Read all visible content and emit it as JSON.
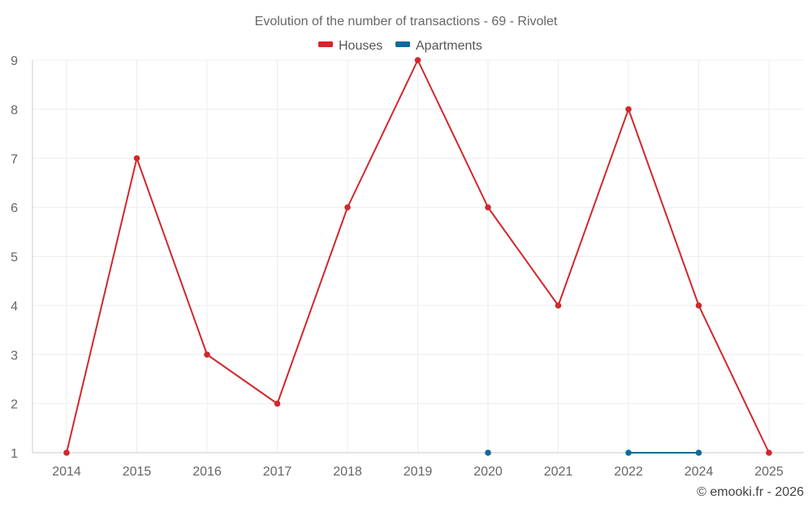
{
  "chart_data": {
    "type": "line",
    "title": "Evolution of the number of transactions - 69 - Rivolet",
    "categories": [
      "2014",
      "2015",
      "2016",
      "2017",
      "2018",
      "2019",
      "2020",
      "2021",
      "2022",
      "2024",
      "2025"
    ],
    "ylim": [
      1,
      9
    ],
    "yticks": [
      1,
      2,
      3,
      4,
      5,
      6,
      7,
      8,
      9
    ],
    "grid": true,
    "legend_position": "top-center",
    "series": [
      {
        "name": "Houses",
        "color": "#d0282c",
        "values": [
          1,
          7,
          3,
          2,
          6,
          9,
          6,
          4,
          8,
          4,
          1
        ]
      },
      {
        "name": "Apartments",
        "color": "#0e6a9c",
        "values": [
          null,
          null,
          null,
          null,
          null,
          null,
          1,
          null,
          1,
          1,
          null
        ]
      }
    ]
  },
  "credit": "© emooki.fr - 2026"
}
